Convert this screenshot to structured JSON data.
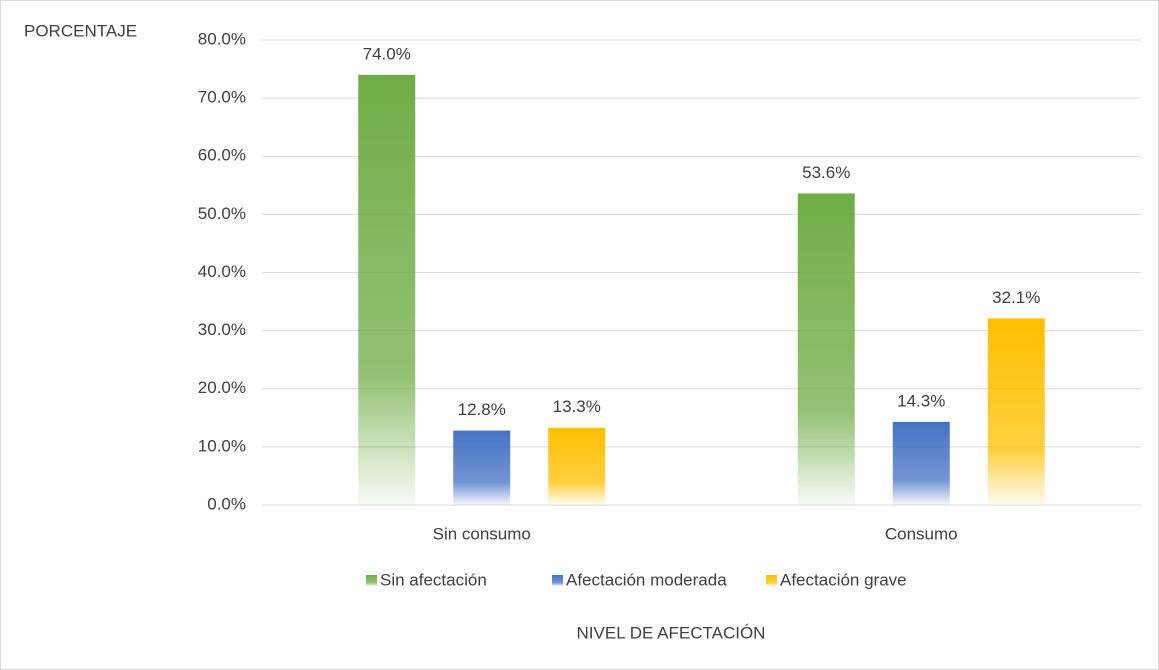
{
  "chart_data": {
    "type": "bar",
    "y_label": "PORCENTAJE",
    "x_label": "NIVEL DE AFECTACIÓN",
    "categories": [
      "Sin consumo",
      "Consumo"
    ],
    "series": [
      {
        "name": "Sin afectación",
        "color": "#70ad47",
        "values": [
          74.0,
          53.6
        ],
        "value_labels": [
          "74.0%",
          "53.6%"
        ]
      },
      {
        "name": "Afectación moderada",
        "color": "#4472c4",
        "values": [
          12.8,
          14.3
        ],
        "value_labels": [
          "12.8%",
          "14.3%"
        ]
      },
      {
        "name": "Afectación grave",
        "color": "#ffc000",
        "values": [
          13.3,
          32.1
        ],
        "value_labels": [
          "13.3%",
          "32.1%"
        ]
      }
    ],
    "ylim": [
      0,
      80
    ],
    "yticks": [
      {
        "value": 0,
        "label": "0.0%"
      },
      {
        "value": 10,
        "label": "10.0%"
      },
      {
        "value": 20,
        "label": "20.0%"
      },
      {
        "value": 30,
        "label": "30.0%"
      },
      {
        "value": 40,
        "label": "40.0%"
      },
      {
        "value": 50,
        "label": "50.0%"
      },
      {
        "value": 60,
        "label": "60.0%"
      },
      {
        "value": 70,
        "label": "70.0%"
      },
      {
        "value": 80,
        "label": "80.0%"
      }
    ],
    "grid": true,
    "legend": "bottom"
  }
}
